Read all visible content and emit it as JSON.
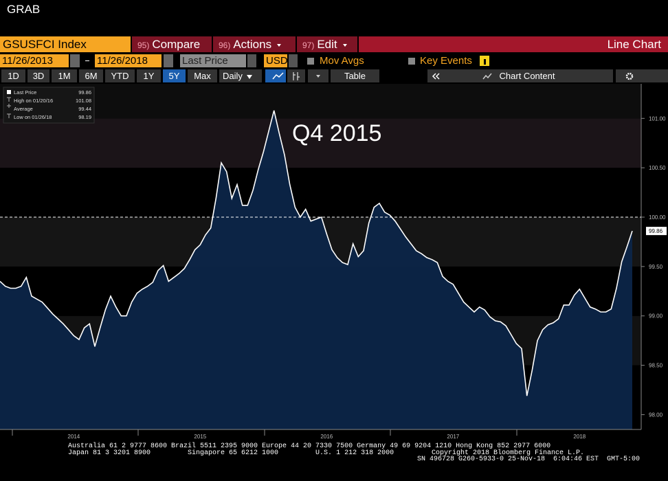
{
  "window_title": "GRAB",
  "toolbar": {
    "ticker": "GSUSFCI Index",
    "buttons": [
      {
        "number": "95)",
        "label": "Compare"
      },
      {
        "number": "96)",
        "label": "Actions"
      },
      {
        "number": "97)",
        "label": "Edit"
      }
    ],
    "view": "Line Chart"
  },
  "settings": {
    "start_date": "11/26/2013",
    "end_date": "11/26/2018",
    "field": "Last Price",
    "currency": "USD",
    "mov_avgs": "Mov Avgs",
    "key_events": "Key Events"
  },
  "range_bar": {
    "ranges": [
      "1D",
      "3D",
      "1M",
      "6M",
      "YTD",
      "1Y",
      "5Y",
      "Max"
    ],
    "selected": "5Y",
    "frequency": "Daily",
    "table": "Table",
    "chart_content": "Chart Content"
  },
  "chart_data": {
    "type": "area-line",
    "annotation": "Q4 2015",
    "legend": [
      {
        "label": "Last Price",
        "value": 99.86
      },
      {
        "label": "High on 01/20/16",
        "value": 101.08
      },
      {
        "label": "Average",
        "value": 99.44
      },
      {
        "label": "Low on 01/26/18",
        "value": 98.19
      }
    ],
    "categories": [
      null,
      null,
      null,
      null,
      null,
      null,
      null,
      null,
      null,
      null,
      null,
      null,
      null,
      null,
      "2014",
      null,
      null,
      null,
      null,
      null,
      null,
      null,
      null,
      null,
      null,
      null,
      null,
      null,
      null,
      null,
      null,
      null,
      null,
      null,
      null,
      null,
      null,
      null,
      "2015",
      null,
      null,
      null,
      null,
      null,
      null,
      null,
      null,
      null,
      null,
      null,
      null,
      null,
      null,
      null,
      null,
      null,
      null,
      null,
      null,
      null,
      null,
      null,
      "2016",
      null,
      null,
      null,
      null,
      null,
      null,
      null,
      null,
      null,
      null,
      null,
      null,
      null,
      null,
      null,
      null,
      null,
      null,
      null,
      null,
      null,
      null,
      null,
      "2017",
      null,
      null,
      null,
      null,
      null,
      null,
      null,
      null,
      null,
      null,
      null,
      null,
      null,
      null,
      null,
      null,
      null,
      null,
      null,
      null,
      null,
      null,
      null,
      "2018",
      null,
      null,
      null,
      null,
      null,
      null,
      null,
      null,
      null,
      null
    ],
    "values": [
      99.35,
      99.3,
      99.28,
      99.28,
      99.3,
      99.39,
      99.2,
      99.17,
      99.14,
      99.08,
      99.02,
      98.97,
      98.92,
      98.86,
      98.8,
      98.76,
      98.88,
      98.92,
      98.69,
      98.88,
      99.06,
      99.2,
      99.09,
      99.0,
      99.0,
      99.14,
      99.23,
      99.27,
      99.3,
      99.34,
      99.46,
      99.51,
      99.35,
      99.39,
      99.43,
      99.48,
      99.57,
      99.67,
      99.72,
      99.82,
      99.89,
      100.19,
      100.55,
      100.46,
      100.19,
      100.33,
      100.12,
      100.12,
      100.27,
      100.48,
      100.66,
      100.87,
      101.08,
      100.85,
      100.63,
      100.33,
      100.1,
      100.0,
      100.08,
      99.96,
      99.98,
      100.0,
      99.83,
      99.67,
      99.59,
      99.54,
      99.52,
      99.73,
      99.6,
      99.66,
      99.94,
      100.1,
      100.14,
      100.05,
      100.02,
      99.96,
      99.88,
      99.8,
      99.73,
      99.66,
      99.63,
      99.59,
      99.57,
      99.54,
      99.4,
      99.35,
      99.32,
      99.23,
      99.14,
      99.09,
      99.04,
      99.09,
      99.06,
      98.99,
      98.95,
      98.94,
      98.9,
      98.81,
      98.72,
      98.67,
      98.19,
      98.45,
      98.75,
      98.86,
      98.91,
      98.93,
      98.97,
      99.11,
      99.11,
      99.21,
      99.27,
      99.18,
      99.09,
      99.07,
      99.04,
      99.04,
      99.07,
      99.28,
      99.55,
      99.7,
      99.86
    ],
    "line_color": "#ffffff",
    "area_color": "#0c2548",
    "reference_line": 100,
    "ylim": [
      97.85,
      101.35
    ],
    "yticks": [
      {
        "value": 98,
        "label": "98.00"
      },
      {
        "value": 98.5,
        "label": "98.50"
      },
      {
        "value": 99,
        "label": "99.00"
      },
      {
        "value": 99.5,
        "label": "99.50"
      },
      {
        "value": 100,
        "label": "100.00"
      },
      {
        "value": 100.5,
        "label": "100.50"
      },
      {
        "value": 101,
        "label": "101.00"
      }
    ]
  },
  "footer": {
    "line1": "Australia 61 2 9777 8600 Brazil 5511 2395 9000 Europe 44 20 7330 7500 Germany 49 69 9204 1210 Hong Kong 852 2977 6000",
    "line2": "Japan 81 3 3201 8900         Singapore 65 6212 1000         U.S. 1 212 318 2000",
    "copyright": "Copyright 2018 Bloomberg Finance L.P.",
    "line3": "SN 496728 G260-5933-0 25-Nov-18  6:04:46 EST  GMT-5:00"
  }
}
